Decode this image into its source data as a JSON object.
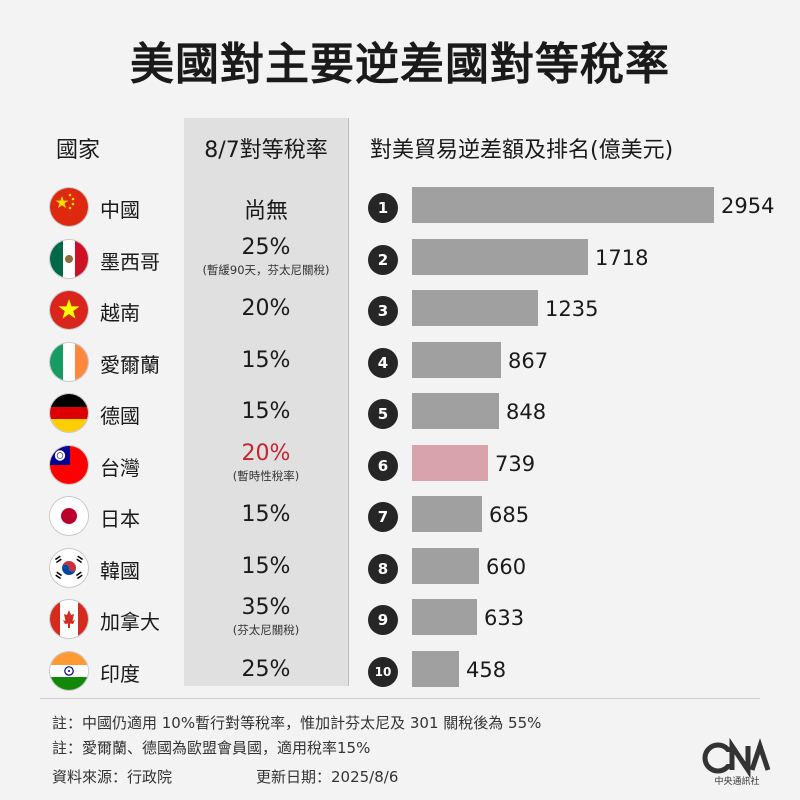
{
  "title": "美國對主要逆差國對等稅率",
  "headers": {
    "country": "國家",
    "rate": "8/7對等稅率",
    "deficit": "對美貿易逆差額及排名(億美元)"
  },
  "chart_data": {
    "type": "bar",
    "title": "美國對主要逆差國對等稅率",
    "ylabel": "對美貿易逆差額及排名(億美元)",
    "categories": [
      "中國",
      "墨西哥",
      "越南",
      "愛爾蘭",
      "德國",
      "台灣",
      "日本",
      "韓國",
      "加拿大",
      "印度"
    ],
    "values": [
      2954,
      1718,
      1235,
      867,
      848,
      739,
      685,
      660,
      633,
      458
    ],
    "ranks": [
      "1",
      "2",
      "3",
      "4",
      "5",
      "6",
      "7",
      "8",
      "9",
      "10"
    ],
    "value_labels": [
      "2954",
      "1718",
      "1235",
      "867",
      "848",
      "739",
      "685",
      "660",
      "633",
      "458"
    ],
    "highlight_color": "#d8a3ab",
    "bar_color": "#a0a0a0",
    "highlight_index": 5
  },
  "rows": [
    {
      "country": "中國",
      "rate": "尚無",
      "note": "",
      "flag": "china-flag-icon"
    },
    {
      "country": "墨西哥",
      "rate": "25%",
      "note": "(暫緩90天，芬太尼關稅)",
      "flag": "mexico-flag-icon"
    },
    {
      "country": "越南",
      "rate": "20%",
      "note": "",
      "flag": "vietnam-flag-icon"
    },
    {
      "country": "愛爾蘭",
      "rate": "15%",
      "note": "",
      "flag": "ireland-flag-icon"
    },
    {
      "country": "德國",
      "rate": "15%",
      "note": "",
      "flag": "germany-flag-icon"
    },
    {
      "country": "台灣",
      "rate": "20%",
      "note": "(暫時性稅率)",
      "flag": "taiwan-flag-icon"
    },
    {
      "country": "日本",
      "rate": "15%",
      "note": "",
      "flag": "japan-flag-icon"
    },
    {
      "country": "韓國",
      "rate": "15%",
      "note": "",
      "flag": "korea-flag-icon"
    },
    {
      "country": "加拿大",
      "rate": "35%",
      "note": "(芬太尼關稅)",
      "flag": "canada-flag-icon"
    },
    {
      "country": "印度",
      "rate": "25%",
      "note": "",
      "flag": "india-flag-icon"
    }
  ],
  "footnotes": {
    "note1": "註：中國仍適用 10%暫行對等稅率，惟加計芬太尼及 301 關稅後為 55%",
    "note2": "註：愛爾蘭、德國為歐盟會員國，適用稅率15%",
    "source": "資料來源：行政院",
    "updated": "更新日期：2025/8/6"
  },
  "logo": {
    "text": "中央通訊社",
    "icon": "cna-logo-icon"
  },
  "colors": {
    "highlight_rate_text": "#c8232c"
  }
}
